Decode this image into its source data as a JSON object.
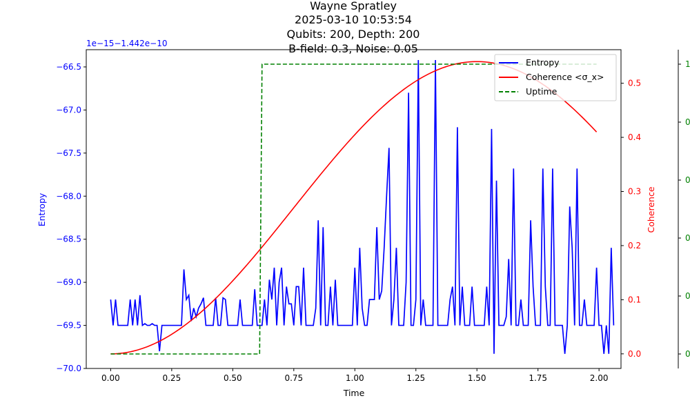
{
  "chart_data": {
    "type": "line",
    "title_lines": [
      "Wayne Spratley",
      "2025-03-10 10:53:54",
      "Qubits: 200, Depth: 200",
      "B-field: 0.3, Noise: 0.05"
    ],
    "xlabel": "Time",
    "xlim": [
      -0.1,
      2.09
    ],
    "xticks": [
      0.0,
      0.25,
      0.5,
      0.75,
      1.0,
      1.25,
      1.5,
      1.75,
      2.0
    ],
    "xtick_labels": [
      "0.00",
      "0.25",
      "0.50",
      "0.75",
      "1.00",
      "1.25",
      "1.50",
      "1.75",
      "2.00"
    ],
    "grid": false,
    "legend_position": "top-right",
    "axes": {
      "left": {
        "label": "Entropy",
        "color": "#0000ff",
        "offset_text": "1e−15−1.442e−10",
        "ylim": [
          -70.0,
          -66.3
        ],
        "ticks": [
          -70.0,
          -69.5,
          -69.0,
          -68.5,
          -68.0,
          -67.5,
          -67.0,
          -66.5
        ],
        "tick_labels": [
          "−70.0",
          "−69.5",
          "−69.0",
          "−68.5",
          "−68.0",
          "−67.5",
          "−67.0",
          "−66.5"
        ]
      },
      "right": {
        "label": "Coherence",
        "color": "#ff0000",
        "ylim": [
          -0.027,
          0.562
        ],
        "ticks": [
          0.0,
          0.1,
          0.2,
          0.3,
          0.4,
          0.5
        ],
        "tick_labels": [
          "0.0",
          "0.1",
          "0.2",
          "0.3",
          "0.4",
          "0.5"
        ]
      },
      "far_right": {
        "color": "#008000",
        "ylim": [
          -0.05,
          1.05
        ],
        "ticks": [
          0.0,
          0.2,
          0.4,
          0.6,
          0.8,
          1.0
        ],
        "tick_labels": [
          "0",
          "0",
          "0",
          "0",
          "0",
          "1"
        ]
      }
    },
    "series": [
      {
        "name": "Entropy",
        "axis": "left",
        "color": "#0000ff",
        "style": "solid",
        "x_start": 0.0,
        "x_step": 0.01,
        "values": [
          -69.2,
          -69.5,
          -69.2,
          -69.5,
          -69.5,
          -69.5,
          -69.5,
          -69.5,
          -69.2,
          -69.5,
          -69.2,
          -69.5,
          -69.15,
          -69.5,
          -69.48,
          -69.5,
          -69.5,
          -69.48,
          -69.5,
          -69.5,
          -69.8,
          -69.5,
          -69.5,
          -69.5,
          -69.5,
          -69.5,
          -69.5,
          -69.5,
          -69.5,
          -69.5,
          -68.85,
          -69.2,
          -69.15,
          -69.45,
          -69.3,
          -69.4,
          -69.3,
          -69.25,
          -69.18,
          -69.5,
          -69.5,
          -69.5,
          -69.5,
          -69.18,
          -69.5,
          -69.5,
          -69.18,
          -69.2,
          -69.5,
          -69.5,
          -69.5,
          -69.5,
          -69.5,
          -69.2,
          -69.5,
          -69.5,
          -69.5,
          -69.5,
          -69.5,
          -69.08,
          -69.5,
          -69.5,
          -69.5,
          -69.2,
          -69.5,
          -68.97,
          -69.2,
          -68.83,
          -69.5,
          -69.0,
          -68.83,
          -69.5,
          -69.05,
          -69.25,
          -69.25,
          -69.5,
          -69.05,
          -69.05,
          -69.5,
          -68.83,
          -69.5,
          -69.5,
          -69.5,
          -69.5,
          -69.3,
          -68.28,
          -69.5,
          -68.36,
          -69.5,
          -69.5,
          -69.05,
          -69.5,
          -68.97,
          -69.5,
          -69.5,
          -69.5,
          -69.5,
          -69.5,
          -69.5,
          -69.5,
          -68.83,
          -69.5,
          -68.6,
          -69.3,
          -69.5,
          -69.5,
          -69.2,
          -69.2,
          -69.2,
          -68.36,
          -69.2,
          -69.1,
          -68.6,
          -68.0,
          -67.44,
          -69.5,
          -69.2,
          -68.6,
          -69.5,
          -69.5,
          -69.5,
          -69.0,
          -66.8,
          -69.5,
          -69.5,
          -69.2,
          -66.42,
          -69.5,
          -69.2,
          -69.5,
          -69.5,
          -69.5,
          -69.5,
          -66.42,
          -69.5,
          -69.5,
          -69.5,
          -69.5,
          -69.5,
          -69.2,
          -69.05,
          -69.5,
          -67.2,
          -69.5,
          -69.05,
          -69.5,
          -69.5,
          -69.5,
          -69.05,
          -69.5,
          -69.5,
          -69.5,
          -69.5,
          -69.5,
          -69.05,
          -69.5,
          -67.22,
          -69.83,
          -67.82,
          -69.5,
          -69.5,
          -69.5,
          -69.4,
          -68.73,
          -69.5,
          -67.68,
          -69.5,
          -69.5,
          -69.2,
          -69.5,
          -69.5,
          -69.5,
          -68.28,
          -69.05,
          -69.5,
          -69.5,
          -69.5,
          -67.68,
          -69.05,
          -69.5,
          -69.5,
          -67.68,
          -69.5,
          -69.5,
          -69.5,
          -69.5,
          -69.83,
          -69.5,
          -68.12,
          -68.6,
          -69.5,
          -67.68,
          -69.5,
          -69.5,
          -69.2,
          -69.5,
          -69.5,
          -69.5,
          -69.5,
          -68.83,
          -69.5,
          -69.5,
          -69.83,
          -69.5,
          -69.83,
          -68.6,
          -69.5
        ]
      },
      {
        "name": "Coherence <σ_x>",
        "axis": "right",
        "color": "#ff0000",
        "style": "solid",
        "function": "0.54*sin(pi*x/3)^2",
        "x_range": [
          0.0,
          1.99
        ]
      },
      {
        "name": "Uptime",
        "axis": "far_right",
        "color": "#008000",
        "style": "dashed",
        "x": [
          0.0,
          0.61,
          0.62,
          1.99
        ],
        "values": [
          0.0,
          0.0,
          1.0,
          1.0
        ]
      }
    ]
  }
}
